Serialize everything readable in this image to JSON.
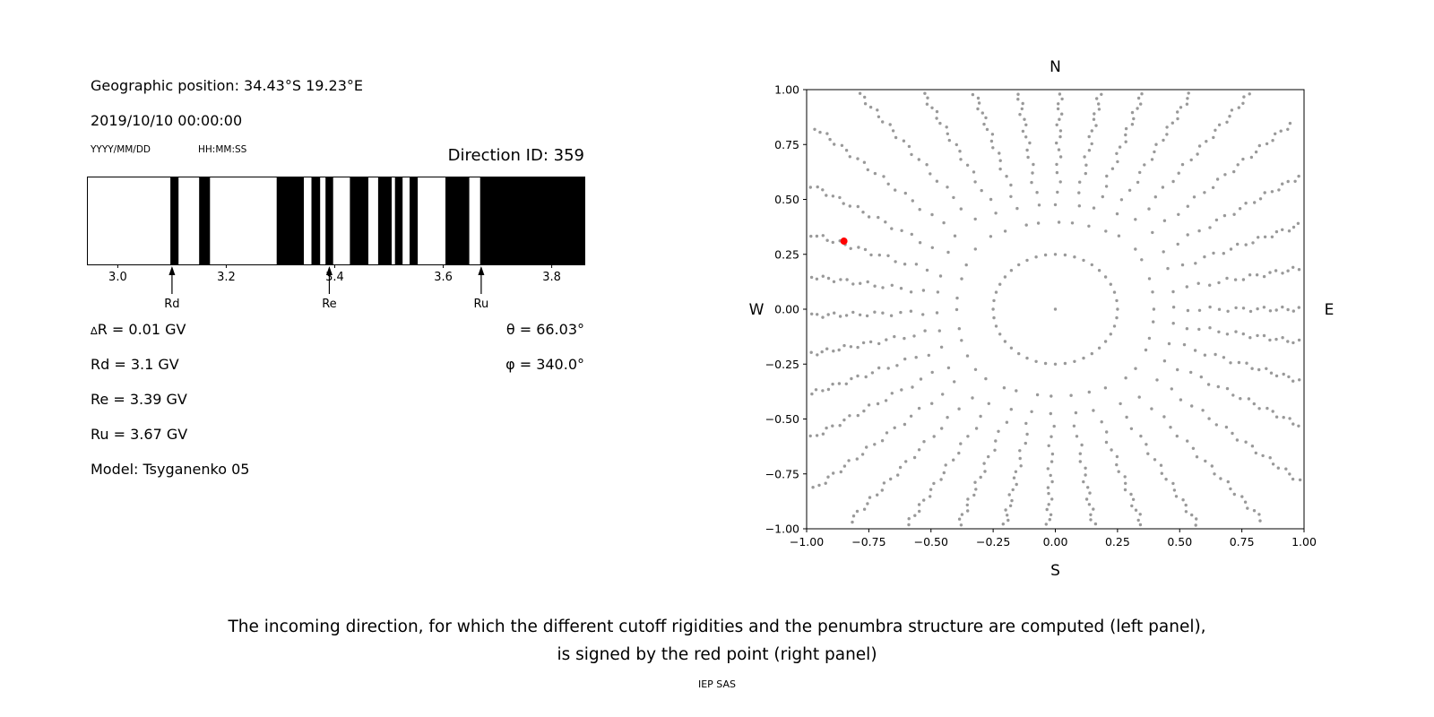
{
  "header": {
    "geo_position": "Geographic position: 34.43°S 19.23°E",
    "datetime": "2019/10/10 00:00:00",
    "date_format": "YYYY/MM/DD",
    "time_format": "HH:MM:SS",
    "direction_id": "Direction ID: 359"
  },
  "values": {
    "delta_symbol": "∆",
    "delta_r_text": "R = 0.01 GV",
    "rd": "Rd = 3.1 GV",
    "re": "Re = 3.39 GV",
    "ru": "Ru = 3.67 GV",
    "model": "Model: Tsyganenko 05",
    "theta": "θ = 66.03°",
    "phi": "φ = 340.0°"
  },
  "caption": {
    "line1": "The incoming direction, for which the different cutoff rigidities and the penumbra structure are computed (left panel),",
    "line2": "is signed by the red point (right panel)",
    "credit": "IEP SAS"
  },
  "chart_data": [
    {
      "type": "bar",
      "name": "penumbra-structure",
      "description": "Cosmic-ray penumbra barcode: black bands are forbidden rigidity intervals in GV",
      "xlim": [
        2.944,
        3.861
      ],
      "xtick_values": [
        3.0,
        3.2,
        3.4,
        3.6,
        3.8
      ],
      "xtick_labels": [
        "3.0",
        "3.2",
        "3.4",
        "3.6",
        "3.8"
      ],
      "forbidden_segments_gv": [
        [
          3.097,
          3.112
        ],
        [
          3.15,
          3.17
        ],
        [
          3.293,
          3.343
        ],
        [
          3.357,
          3.373
        ],
        [
          3.383,
          3.397
        ],
        [
          3.428,
          3.462
        ],
        [
          3.48,
          3.505
        ],
        [
          3.511,
          3.525
        ],
        [
          3.538,
          3.553
        ],
        [
          3.604,
          3.648
        ],
        [
          3.668,
          3.861
        ]
      ],
      "markers": [
        {
          "label": "Rd",
          "x": 3.1
        },
        {
          "label": "Re",
          "x": 3.39
        },
        {
          "label": "Ru",
          "x": 3.67
        }
      ],
      "bar_color": "#000000"
    },
    {
      "type": "scatter",
      "name": "incoming-direction-map",
      "xlim": [
        -1,
        1
      ],
      "ylim": [
        -1,
        1
      ],
      "xticks": [
        -1.0,
        -0.75,
        -0.5,
        -0.25,
        0.0,
        0.25,
        0.5,
        0.75,
        1.0
      ],
      "yticks": [
        1.0,
        0.75,
        0.5,
        0.25,
        0.0,
        -0.25,
        -0.5,
        -0.75,
        -1.0
      ],
      "compass_labels": {
        "top": "N",
        "bottom": "S",
        "left": "W",
        "right": "E"
      },
      "dot_color": "#999999",
      "selected_point": {
        "x": -0.85,
        "y": 0.31,
        "color": "#ff0000"
      },
      "pattern": {
        "description": "36 radial spokes of gray direction dots from r=0.3 outward (denser at outer ends, clipped at plot box), inner ring of dots at r=0.25 and a center dot",
        "spoke_count": 36,
        "spoke_r_start": 0.3,
        "outer_cluster_exponent": 0.55,
        "inner_ring_radius": 0.25,
        "inner_ring_count": 40,
        "center_dot": true
      }
    }
  ]
}
